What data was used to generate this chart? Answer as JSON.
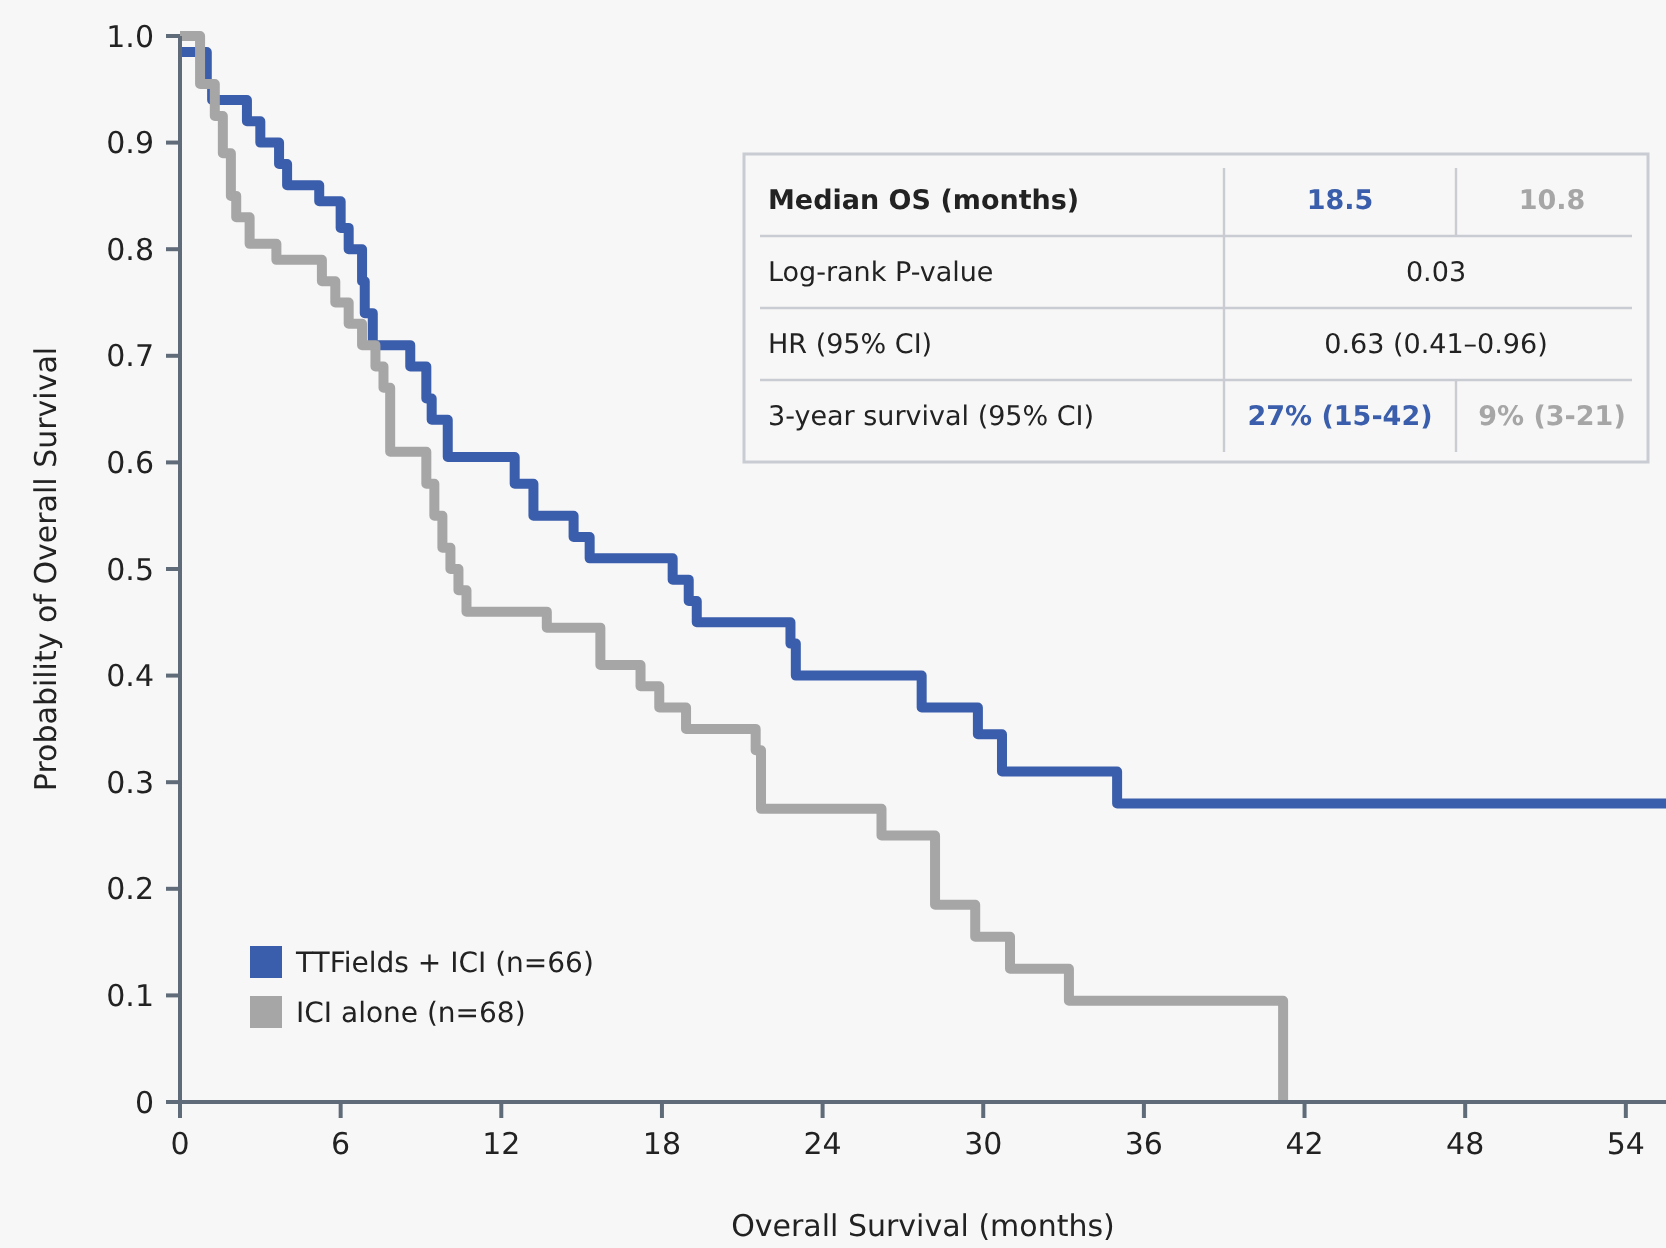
{
  "chart_data": {
    "type": "step",
    "xlabel": "Overall Survival (months)",
    "ylabel": "Probability of Overall Survival",
    "xlim": [
      0,
      55.5
    ],
    "xticks": [
      0,
      6,
      12,
      18,
      24,
      30,
      36,
      42,
      48,
      54
    ],
    "ylim": [
      0,
      1
    ],
    "yticks": [
      {
        "value": 0,
        "label": "0"
      },
      0.1,
      0.2,
      0.3,
      0.4,
      0.5,
      0.6,
      0.7,
      0.8,
      0.9,
      {
        "value": 1,
        "label": "1.0"
      }
    ],
    "grid": false,
    "legend": "bottom left",
    "line_style": "solid",
    "marker": "none",
    "series": [
      {
        "name": "TTFields + ICI (n=66)",
        "color": "#3a5eab",
        "x": [
          0,
          1.0,
          1.2,
          2.5,
          3.0,
          3.7,
          4.0,
          5.2,
          6.0,
          6.3,
          6.8,
          6.9,
          7.2,
          8.6,
          9.2,
          9.4,
          10.0,
          12.5,
          13.2,
          14.7,
          15.3,
          18.4,
          19.0,
          19.3,
          22.8,
          23.0,
          27.7,
          29.8,
          30.7,
          35.0,
          55.5
        ],
        "values": [
          0.985,
          0.955,
          0.94,
          0.92,
          0.9,
          0.88,
          0.86,
          0.845,
          0.82,
          0.8,
          0.77,
          0.74,
          0.71,
          0.69,
          0.66,
          0.64,
          0.605,
          0.58,
          0.55,
          0.53,
          0.51,
          0.49,
          0.47,
          0.45,
          0.43,
          0.4,
          0.37,
          0.345,
          0.31,
          0.28,
          0.28
        ]
      },
      {
        "name": "ICI alone (n=68)",
        "color": "#a6a6a6",
        "x": [
          0,
          0.75,
          1.3,
          1.6,
          1.9,
          2.1,
          2.6,
          3.6,
          5.3,
          5.8,
          6.3,
          6.8,
          7.3,
          7.6,
          7.85,
          9.2,
          9.5,
          9.8,
          10.1,
          10.4,
          10.7,
          11.0,
          13.7,
          15.7,
          17.2,
          17.9,
          18.9,
          21.5,
          21.7,
          26.2,
          28.2,
          29.7,
          31.0,
          33.2,
          41.2
        ],
        "values": [
          1.0,
          0.955,
          0.925,
          0.89,
          0.85,
          0.83,
          0.805,
          0.79,
          0.77,
          0.75,
          0.73,
          0.71,
          0.69,
          0.67,
          0.61,
          0.58,
          0.55,
          0.52,
          0.5,
          0.48,
          0.46,
          0.46,
          0.445,
          0.41,
          0.39,
          0.37,
          0.35,
          0.33,
          0.275,
          0.25,
          0.185,
          0.155,
          0.125,
          0.095,
          0
        ]
      }
    ],
    "annotations": [
      "Median OS (months)",
      "18.5",
      "10.8",
      "Log-rank P-value",
      "0.03",
      "HR (95% CI)",
      "0.63 (0.41–0.96)",
      "3-year survival (95% CI)",
      "27% (15-42)",
      "9% (3-21)"
    ]
  }
}
